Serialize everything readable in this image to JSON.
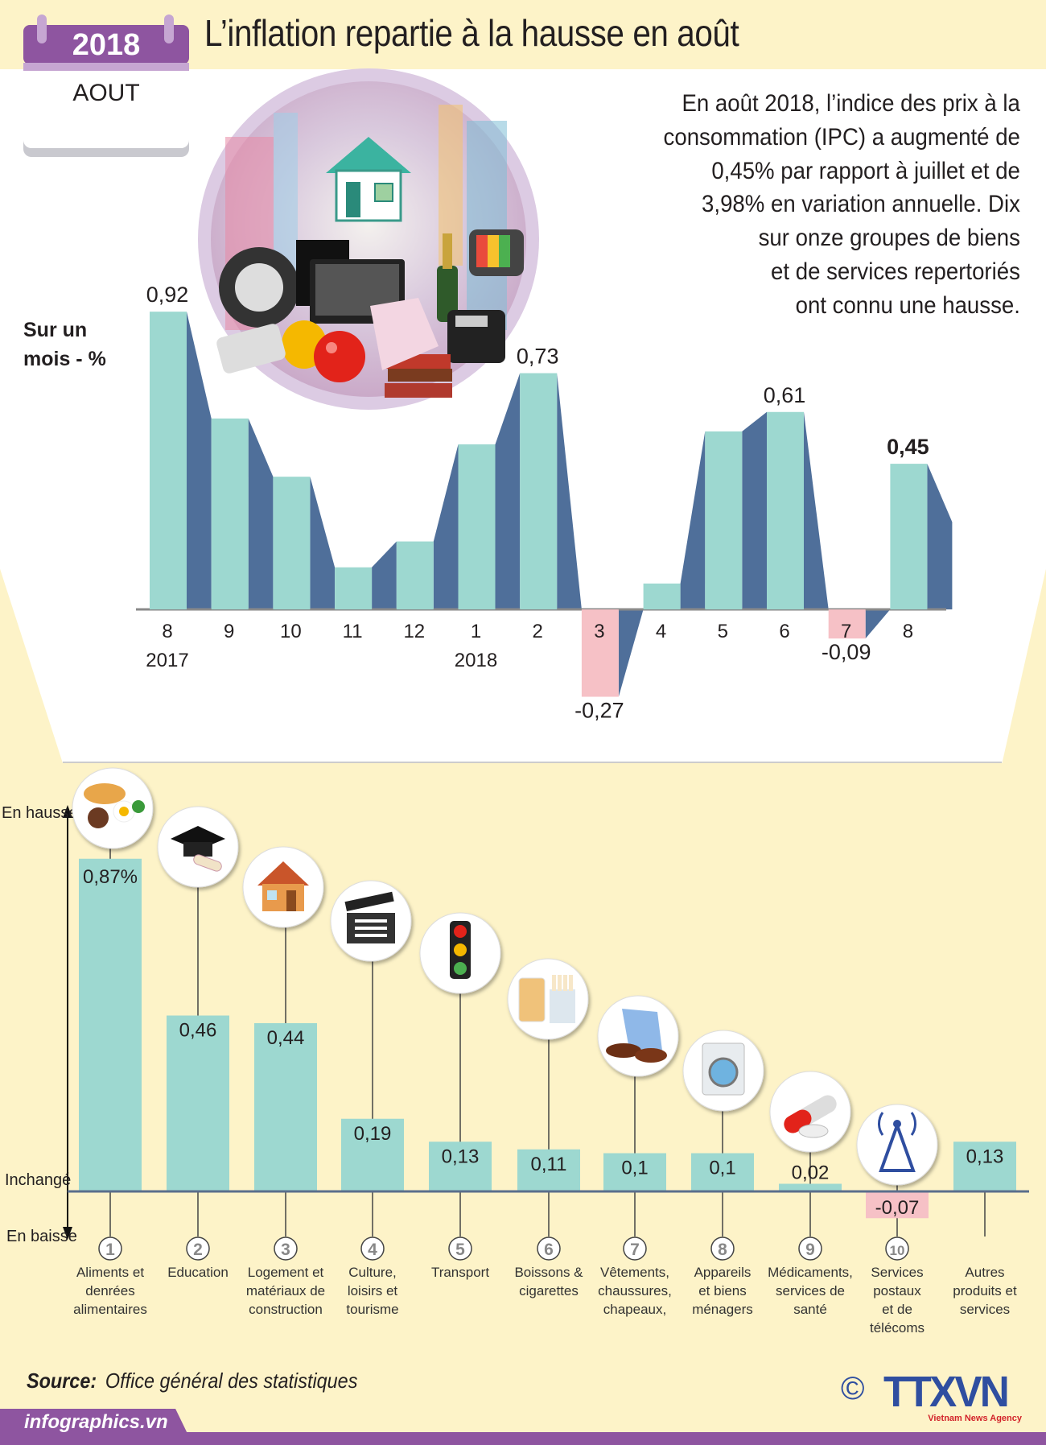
{
  "header": {
    "year": "2018",
    "month": "AOUT",
    "title": "L’inflation repartie à la hausse en août"
  },
  "description": [
    "En août 2018, l’indice des prix à la",
    "consommation (IPC) a augmenté de",
    "0,45% par rapport à juillet et de",
    "3,98% en variation annuelle. Dix",
    "sur onze groupes de biens",
    "et de services repertoriés",
    "ont connu une hausse."
  ],
  "monthly_label": [
    "Sur un",
    "mois - %"
  ],
  "colors": {
    "header_band": "#fdf3c8",
    "accent_purple": "#8e55a0",
    "bar_front": "#9dd8d0",
    "bar_side": "#4f6f9a",
    "negative": "#f6c1c6",
    "logo_blue": "#2f4ea0"
  },
  "chart_data": [
    {
      "type": "bar",
      "ylabel": "Sur un mois - %",
      "categories": [
        "8",
        "9",
        "10",
        "11",
        "12",
        "1",
        "2",
        "3",
        "4",
        "5",
        "6",
        "7",
        "8"
      ],
      "year_labels": [
        "2017",
        "",
        "",
        "",
        "",
        "2018",
        "",
        "",
        "",
        "",
        "",
        "",
        ""
      ],
      "values": [
        0.92,
        0.59,
        0.41,
        0.13,
        0.21,
        0.51,
        0.73,
        -0.27,
        0.08,
        0.55,
        0.61,
        -0.09,
        0.45
      ],
      "value_labels": [
        "0,92",
        "",
        "",
        "",
        "",
        "",
        "0,73",
        "-0,27",
        "",
        "",
        "0,61",
        "-0,09",
        "0,45"
      ],
      "highlight_index": 12
    },
    {
      "type": "bar",
      "axis_labels": {
        "up": "En hausse",
        "zero": "Inchangé",
        "down": "En baisse"
      },
      "numbers": [
        "1",
        "2",
        "3",
        "4",
        "5",
        "6",
        "7",
        "8",
        "9",
        "10",
        ""
      ],
      "icons": [
        "food-icon",
        "graduation-cap-icon",
        "house-icon",
        "clapperboard-icon",
        "traffic-light-icon",
        "drink-cigarettes-icon",
        "clothes-shoes-icon",
        "washing-machine-icon",
        "pills-icon",
        "antenna-tower-icon",
        ""
      ],
      "categories": [
        [
          "Aliments et",
          "denrées",
          "alimentaires"
        ],
        [
          "Education"
        ],
        [
          "Logement et",
          "matériaux de",
          "construction"
        ],
        [
          "Culture,",
          "loisirs et",
          "tourisme"
        ],
        [
          "Transport"
        ],
        [
          "Boissons &",
          "cigarettes"
        ],
        [
          "Vêtements,",
          "chaussures,",
          "chapeaux,"
        ],
        [
          "Appareils",
          "et biens",
          "ménagers"
        ],
        [
          "Médicaments,",
          "services de",
          "santé"
        ],
        [
          "Services",
          "postaux",
          "et de",
          "télécoms"
        ],
        [
          "Autres",
          "produits et",
          "services"
        ]
      ],
      "values": [
        0.87,
        0.46,
        0.44,
        0.19,
        0.13,
        0.11,
        0.1,
        0.1,
        0.02,
        -0.07,
        0.13
      ],
      "value_labels": [
        "0,87%",
        "0,46",
        "0,44",
        "0,19",
        "0,13",
        "0,11",
        "0,1",
        "0,1",
        "0,02",
        "-0,07",
        "0,13"
      ]
    }
  ],
  "footer": {
    "source_label": "Source:",
    "source": "Office général des statistiques",
    "site": "infographics.vn",
    "copyright": "©",
    "logo": "TTXVN",
    "logo_sub": "Vietnam News Agency"
  }
}
